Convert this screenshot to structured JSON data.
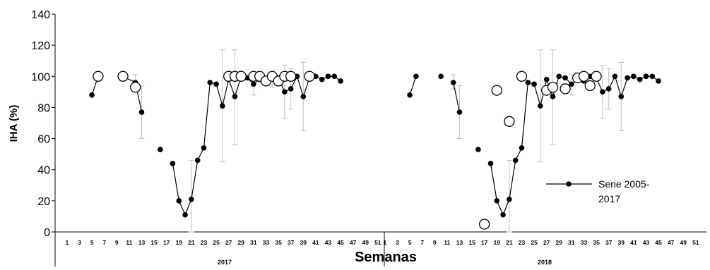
{
  "chart_data": {
    "type": "scatter",
    "ylabel": "IHA (%)",
    "xlabel": "Semanas",
    "ylim": [
      0,
      140
    ],
    "yticks": [
      0,
      20,
      40,
      60,
      80,
      100,
      120,
      140
    ],
    "xtick_labels": [
      "1",
      "3",
      "5",
      "7",
      "9",
      "11",
      "13",
      "15",
      "17",
      "19",
      "21",
      "23",
      "25",
      "27",
      "29",
      "31",
      "33",
      "35",
      "37",
      "39",
      "41",
      "43",
      "45",
      "47",
      "49",
      "51"
    ],
    "groups": [
      "2017",
      "2018"
    ],
    "legend": {
      "label": "Serie 2005-2017",
      "label_lines": [
        "Serie 2005-",
        "2017"
      ],
      "placement": "right"
    },
    "colors": {
      "series_line": "#000000",
      "marker_fill": "#000000",
      "open_marker": "#000000",
      "error_bar": "#bfbfbf"
    },
    "series": [
      {
        "name": "Serie 2005-2017",
        "group": "2017",
        "points": [
          {
            "x": 5,
            "y": 88
          },
          {
            "x": 6,
            "y": 100
          },
          {
            "x": 10,
            "y": 100
          },
          {
            "x": 12,
            "y": 96
          },
          {
            "x": 13,
            "y": 77
          },
          {
            "x": 16,
            "y": 53
          },
          {
            "x": 18,
            "y": 44
          },
          {
            "x": 19,
            "y": 20
          },
          {
            "x": 20,
            "y": 11
          },
          {
            "x": 21,
            "y": 21
          },
          {
            "x": 22,
            "y": 46
          },
          {
            "x": 23,
            "y": 54
          },
          {
            "x": 24,
            "y": 96
          },
          {
            "x": 25,
            "y": 95
          },
          {
            "x": 26,
            "y": 81
          },
          {
            "x": 27,
            "y": 98
          },
          {
            "x": 28,
            "y": 87
          },
          {
            "x": 29,
            "y": 100
          },
          {
            "x": 30,
            "y": 99
          },
          {
            "x": 31,
            "y": 95
          },
          {
            "x": 32,
            "y": 98
          },
          {
            "x": 33,
            "y": 97
          },
          {
            "x": 34,
            "y": 100
          },
          {
            "x": 35,
            "y": 99
          },
          {
            "x": 36,
            "y": 90
          },
          {
            "x": 37,
            "y": 92
          },
          {
            "x": 38,
            "y": 100
          },
          {
            "x": 39,
            "y": 87
          },
          {
            "x": 40,
            "y": 99
          },
          {
            "x": 41,
            "y": 100
          },
          {
            "x": 42,
            "y": 98
          },
          {
            "x": 43,
            "y": 100
          },
          {
            "x": 44,
            "y": 100
          },
          {
            "x": 45,
            "y": 97
          }
        ],
        "segments": [
          [
            10,
            13
          ],
          [
            18,
            45
          ]
        ],
        "error_bars": [
          {
            "x": 12,
            "low": 92,
            "high": 101
          },
          {
            "x": 13,
            "low": 60,
            "high": 94
          },
          {
            "x": 21,
            "low": 0,
            "high": 46
          },
          {
            "x": 26,
            "low": 45,
            "high": 117
          },
          {
            "x": 28,
            "low": 56,
            "high": 117
          },
          {
            "x": 31,
            "low": 88,
            "high": 101
          },
          {
            "x": 34,
            "low": 93,
            "high": 101
          },
          {
            "x": 36,
            "low": 73,
            "high": 107
          },
          {
            "x": 37,
            "low": 79,
            "high": 105
          },
          {
            "x": 39,
            "low": 65,
            "high": 109
          }
        ]
      },
      {
        "name": "Serie 2005-2017",
        "group": "2018",
        "points": [
          {
            "x": 5,
            "y": 88
          },
          {
            "x": 6,
            "y": 100
          },
          {
            "x": 10,
            "y": 100
          },
          {
            "x": 12,
            "y": 96
          },
          {
            "x": 13,
            "y": 77
          },
          {
            "x": 16,
            "y": 53
          },
          {
            "x": 18,
            "y": 44
          },
          {
            "x": 19,
            "y": 20
          },
          {
            "x": 20,
            "y": 11
          },
          {
            "x": 21,
            "y": 21
          },
          {
            "x": 22,
            "y": 46
          },
          {
            "x": 23,
            "y": 54
          },
          {
            "x": 24,
            "y": 96
          },
          {
            "x": 25,
            "y": 95
          },
          {
            "x": 26,
            "y": 81
          },
          {
            "x": 27,
            "y": 98
          },
          {
            "x": 28,
            "y": 87
          },
          {
            "x": 29,
            "y": 100
          },
          {
            "x": 30,
            "y": 99
          },
          {
            "x": 31,
            "y": 95
          },
          {
            "x": 32,
            "y": 98
          },
          {
            "x": 33,
            "y": 97
          },
          {
            "x": 34,
            "y": 100
          },
          {
            "x": 35,
            "y": 99
          },
          {
            "x": 36,
            "y": 90
          },
          {
            "x": 37,
            "y": 92
          },
          {
            "x": 38,
            "y": 100
          },
          {
            "x": 39,
            "y": 87
          },
          {
            "x": 40,
            "y": 99
          },
          {
            "x": 41,
            "y": 100
          },
          {
            "x": 42,
            "y": 98
          },
          {
            "x": 43,
            "y": 100
          },
          {
            "x": 44,
            "y": 100
          },
          {
            "x": 45,
            "y": 97
          }
        ],
        "segments": [
          [
            12,
            13
          ],
          [
            18,
            45
          ]
        ],
        "error_bars": [
          {
            "x": 12,
            "low": 92,
            "high": 101
          },
          {
            "x": 13,
            "low": 60,
            "high": 94
          },
          {
            "x": 21,
            "low": 0,
            "high": 46
          },
          {
            "x": 26,
            "low": 45,
            "high": 117
          },
          {
            "x": 28,
            "low": 56,
            "high": 117
          },
          {
            "x": 31,
            "low": 88,
            "high": 101
          },
          {
            "x": 34,
            "low": 93,
            "high": 101
          },
          {
            "x": 36,
            "low": 73,
            "high": 107
          },
          {
            "x": 37,
            "low": 79,
            "high": 105
          },
          {
            "x": 39,
            "low": 65,
            "high": 109
          }
        ]
      },
      {
        "group": "2017",
        "marker": "open-circle",
        "points": [
          {
            "x": 6,
            "y": 100
          },
          {
            "x": 10,
            "y": 100
          },
          {
            "x": 12,
            "y": 93
          },
          {
            "x": 27,
            "y": 100
          },
          {
            "x": 28,
            "y": 100
          },
          {
            "x": 29,
            "y": 100
          },
          {
            "x": 31,
            "y": 100
          },
          {
            "x": 32,
            "y": 100
          },
          {
            "x": 33,
            "y": 97
          },
          {
            "x": 34,
            "y": 100
          },
          {
            "x": 35,
            "y": 97
          },
          {
            "x": 36,
            "y": 100
          },
          {
            "x": 37,
            "y": 100
          },
          {
            "x": 40,
            "y": 100
          }
        ]
      },
      {
        "group": "2018",
        "marker": "open-circle",
        "points": [
          {
            "x": 17,
            "y": 5
          },
          {
            "x": 19,
            "y": 91
          },
          {
            "x": 21,
            "y": 71
          },
          {
            "x": 23,
            "y": 100
          },
          {
            "x": 27,
            "y": 91
          },
          {
            "x": 28,
            "y": 93
          },
          {
            "x": 30,
            "y": 92
          },
          {
            "x": 32,
            "y": 99
          },
          {
            "x": 33,
            "y": 100
          },
          {
            "x": 34,
            "y": 94
          },
          {
            "x": 35,
            "y": 100
          }
        ]
      }
    ]
  }
}
